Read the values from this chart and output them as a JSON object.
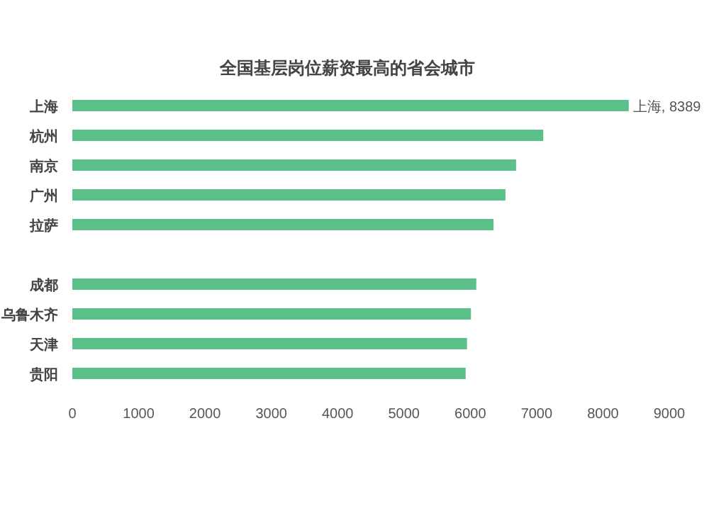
{
  "chart_data": {
    "type": "bar",
    "orientation": "horizontal",
    "title": "全国基层岗位薪资最高的省会城市",
    "categories": [
      "上海",
      "杭州",
      "南京",
      "广州",
      "拉萨",
      null,
      "成都",
      "乌鲁木齐",
      "天津",
      "贵阳"
    ],
    "values": [
      8389,
      7100,
      6690,
      6530,
      6350,
      null,
      6090,
      6010,
      5950,
      5930
    ],
    "value_labels": [
      "上海, 8389",
      null,
      null,
      null,
      null,
      null,
      null,
      null,
      null,
      null
    ],
    "color": "#5cc08a",
    "xlim": [
      0,
      9000
    ],
    "xticks": [
      0,
      1000,
      2000,
      3000,
      4000,
      5000,
      6000,
      7000,
      8000,
      9000
    ]
  }
}
